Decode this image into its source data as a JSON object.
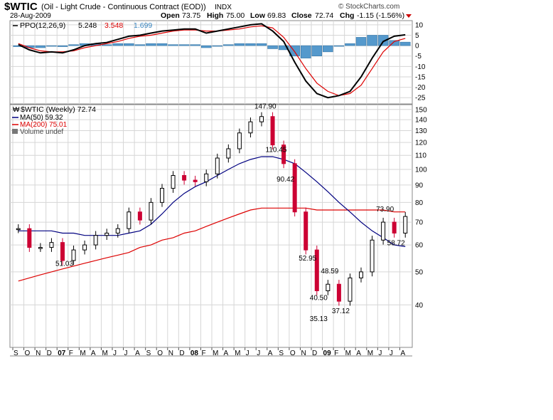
{
  "header": {
    "symbol": "$WTIC",
    "description": "(Oil - Light Crude - Continuous Contract (EOD))",
    "exchange": "INDX",
    "date": "28-Aug-2009",
    "watermark": "© StockCharts.com",
    "open_label": "Open",
    "open": "73.75",
    "high_label": "High",
    "high": "75.00",
    "low_label": "Low",
    "low": "69.83",
    "close_label": "Close",
    "close": "72.74",
    "chg_label": "Chg",
    "chg": "-1.15 (-1.56%)"
  },
  "ppo_panel": {
    "label": "PPO(12,26,9)",
    "ppo_value": "5.248",
    "signal_value": "3.548",
    "hist_value": "1.699",
    "yticks": [
      10,
      5,
      0,
      -5,
      -10,
      -15,
      -20,
      -25
    ]
  },
  "price_panel": {
    "legend_symbol": "$WTIC (Weekly) 72.74",
    "legend_ma50": "MA(50) 59.32",
    "legend_ma200": "MA(200) 75.01",
    "legend_volume": "Volume undef",
    "yticks": [
      150,
      140,
      130,
      120,
      110,
      100,
      90,
      80,
      70,
      60,
      50,
      40
    ]
  },
  "x_axis": {
    "labels": [
      "S",
      "O",
      "N",
      "D",
      "07",
      "F",
      "M",
      "A",
      "M",
      "J",
      "J",
      "A",
      "S",
      "O",
      "N",
      "D",
      "08",
      "F",
      "M",
      "A",
      "M",
      "J",
      "J",
      "A",
      "S",
      "O",
      "N",
      "D",
      "09",
      "F",
      "M",
      "A",
      "M",
      "J",
      "J",
      "A"
    ]
  },
  "colors": {
    "up_bar": "#000000",
    "down_bar": "#cc0033",
    "ma50": "#000080",
    "ma200": "#dd0000",
    "ppo_line": "#000000",
    "signal_line": "#dd0000",
    "histogram": "#5599cc",
    "grid": "#d6d6d6",
    "chg_down": "#cc0000"
  },
  "chart_data": [
    {
      "type": "line",
      "title": "PPO(12,26,9)",
      "ylim": [
        -28,
        12
      ],
      "x": [
        "2006-09",
        "2006-10",
        "2006-11",
        "2006-12",
        "2007-01",
        "2007-02",
        "2007-03",
        "2007-04",
        "2007-05",
        "2007-06",
        "2007-07",
        "2007-08",
        "2007-09",
        "2007-10",
        "2007-11",
        "2007-12",
        "2008-01",
        "2008-02",
        "2008-03",
        "2008-04",
        "2008-05",
        "2008-06",
        "2008-07",
        "2008-08",
        "2008-09",
        "2008-10",
        "2008-11",
        "2008-12",
        "2009-01",
        "2009-02",
        "2009-03",
        "2009-04",
        "2009-05",
        "2009-06",
        "2009-07",
        "2009-08"
      ],
      "series": [
        {
          "name": "PPO",
          "values": [
            0.5,
            -2,
            -3.5,
            -3,
            -3.5,
            -2,
            0,
            1,
            1.5,
            3,
            4.5,
            5,
            6,
            7,
            7.5,
            8,
            8,
            6,
            7,
            8,
            9,
            10,
            10.5,
            7,
            2,
            -8,
            -17,
            -23,
            -25,
            -24,
            -22,
            -15,
            -6,
            2,
            4.5,
            5.2
          ]
        },
        {
          "name": "Signal",
          "values": [
            1,
            -1,
            -2.5,
            -3,
            -3,
            -2.5,
            -1,
            0,
            1,
            2,
            3.5,
            4.5,
            5,
            6,
            7,
            7.5,
            7.5,
            7,
            7,
            7.5,
            8,
            9,
            9.5,
            8.5,
            4,
            -3,
            -11,
            -18,
            -22,
            -24,
            -23,
            -19,
            -11,
            -3,
            2,
            3.5
          ]
        },
        {
          "name": "Histogram",
          "values": [
            -0.5,
            -1,
            -1,
            0,
            -0.5,
            0.5,
            1,
            1,
            0.5,
            1,
            1,
            0.5,
            1,
            1,
            0.5,
            0.5,
            0.5,
            -1,
            0,
            0.5,
            1,
            1,
            1,
            -1.5,
            -2,
            -5,
            -6,
            -5,
            -3,
            0,
            1,
            4,
            5,
            5,
            2.5,
            1.7
          ]
        }
      ]
    },
    {
      "type": "line",
      "title": "$WTIC (Weekly)",
      "scale": "log",
      "ylim": [
        30,
        155
      ],
      "x": [
        "2006-09",
        "2006-10",
        "2006-11",
        "2006-12",
        "2007-01",
        "2007-02",
        "2007-03",
        "2007-04",
        "2007-05",
        "2007-06",
        "2007-07",
        "2007-08",
        "2007-09",
        "2007-10",
        "2007-11",
        "2007-12",
        "2008-01",
        "2008-02",
        "2008-03",
        "2008-04",
        "2008-05",
        "2008-06",
        "2008-07",
        "2008-08",
        "2008-09",
        "2008-10",
        "2008-11",
        "2008-12",
        "2009-01",
        "2009-02",
        "2009-03",
        "2009-04",
        "2009-05",
        "2009-06",
        "2009-07",
        "2009-08"
      ],
      "series": [
        {
          "name": "$WTIC",
          "values": [
            67,
            59,
            59,
            61,
            54,
            58,
            60,
            64,
            65,
            67,
            75,
            71,
            80,
            88,
            96,
            93,
            92,
            97,
            108,
            115,
            128,
            138,
            143,
            118,
            104,
            75,
            58,
            44,
            46,
            41,
            48,
            50,
            62,
            70,
            65,
            72.74
          ]
        },
        {
          "name": "MA(50)",
          "values": [
            66,
            66,
            66,
            66,
            65,
            65,
            64,
            64,
            64,
            64,
            65,
            66,
            69,
            74,
            80,
            85,
            89,
            92,
            96,
            100,
            104,
            107,
            109,
            109,
            107,
            104,
            98,
            92,
            86,
            80,
            75,
            70,
            66,
            63,
            60,
            59.32
          ]
        },
        {
          "name": "MA(200)",
          "values": [
            47,
            48,
            49,
            50,
            51,
            52,
            53,
            54,
            55,
            56,
            57,
            59,
            60,
            62,
            63,
            65,
            66,
            68,
            70,
            72,
            74,
            76,
            77,
            77,
            77,
            77,
            77,
            76,
            76,
            76,
            76,
            76,
            76,
            76,
            75,
            75.01
          ]
        }
      ],
      "annotations": [
        {
          "label": "51.03",
          "x": "2007-01",
          "y": 51.03
        },
        {
          "label": "147.90",
          "x": "2008-07",
          "y": 147.9
        },
        {
          "label": "110.45",
          "x": "2008-08",
          "y": 110.45
        },
        {
          "label": "90.42",
          "x": "2008-09",
          "y": 90.42
        },
        {
          "label": "52.95",
          "x": "2008-11",
          "y": 52.95
        },
        {
          "label": "40.50",
          "x": "2008-12",
          "y": 40.5
        },
        {
          "label": "35.13",
          "x": "2008-12",
          "y": 35.13
        },
        {
          "label": "48.59",
          "x": "2009-01",
          "y": 48.59
        },
        {
          "label": "37.12",
          "x": "2009-02",
          "y": 37.12
        },
        {
          "label": "73.90",
          "x": "2009-06",
          "y": 73.9
        },
        {
          "label": "58.72",
          "x": "2009-07",
          "y": 58.72
        }
      ]
    }
  ]
}
